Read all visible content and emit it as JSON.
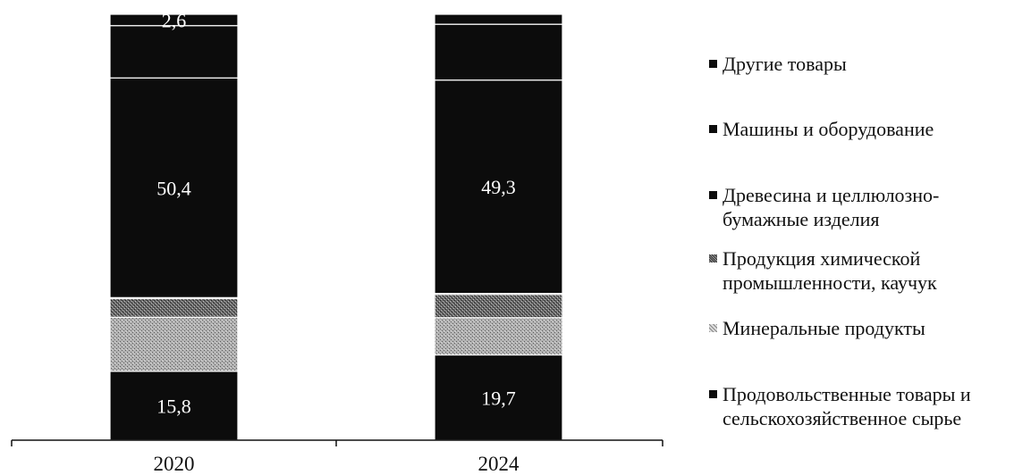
{
  "chart_data": {
    "type": "bar",
    "stacked": true,
    "categories": [
      "2020",
      "2024"
    ],
    "series": [
      {
        "name": "Продовольственные товары и\nсельскохозяйственное сырье",
        "values": [
          15.8,
          19.7
        ],
        "labels": [
          "15,8",
          "19,7"
        ],
        "pattern": "solid"
      },
      {
        "name": "Минеральные продукты",
        "values": [
          12.4,
          8.6
        ],
        "labels": [
          "",
          ""
        ],
        "pattern": "light"
      },
      {
        "name": "Продукция химической\nпромышленности, каучук",
        "values": [
          4.3,
          5.4
        ],
        "labels": [
          "",
          ""
        ],
        "pattern": "mid"
      },
      {
        "name": "Древесина и целлюлозно-\nбумажные изделия",
        "values": [
          0.2,
          0.2
        ],
        "labels": [
          "",
          ""
        ],
        "pattern": "solid"
      },
      {
        "name": "Машины и оборудование",
        "values": [
          50.4,
          49.3
        ],
        "labels": [
          "50,4",
          "49,3"
        ],
        "pattern": "solid"
      },
      {
        "name": "Другие товары",
        "values": [
          12.0,
          12.9
        ],
        "labels": [
          "",
          ""
        ],
        "pattern": "solid"
      }
    ],
    "top_segment": {
      "values": [
        2.6,
        2.3
      ],
      "labels": [
        "2,6",
        ""
      ],
      "pattern": "solid"
    },
    "ylim": [
      0,
      100
    ],
    "legend_position": "right",
    "grid": false
  },
  "legend": {
    "items": [
      {
        "label": "Другие товары",
        "marker": "solid"
      },
      {
        "label": "Машины и оборудование",
        "marker": "solid"
      },
      {
        "label": "Древесина и целлюлозно-\nбумажные изделия",
        "marker": "solid"
      },
      {
        "label": "Продукция химической\nпромышленности, каучук",
        "marker": "mid"
      },
      {
        "label": "Минеральные продукты",
        "marker": "light"
      },
      {
        "label": "Продовольственные товары и\nсельскохозяйственное сырье",
        "marker": "solid"
      }
    ]
  },
  "colors": {
    "solid": "#0c0c0c",
    "mid": "#555555",
    "light": "#9a9a9a",
    "separator": "#ffffff",
    "text_on_dark": "#ffffff"
  }
}
